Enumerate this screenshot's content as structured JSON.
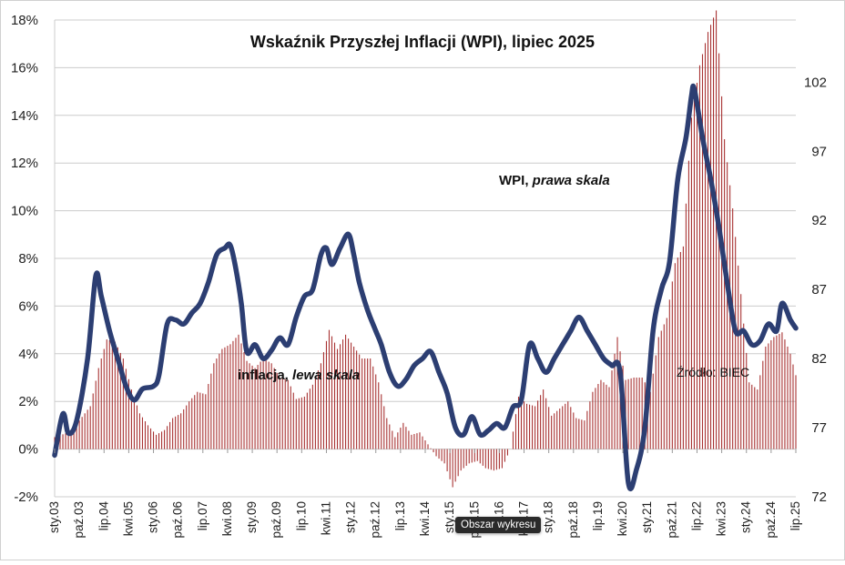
{
  "chart_data": {
    "type": "bar+line",
    "title": "Wskaźnik Przyszłej Inflacji (WPI), lipiec 2025",
    "annotations": {
      "wpi_label_prefix": "WPI, ",
      "wpi_label_italic": "prawa skala",
      "infl_label_prefix": "inflacja, ",
      "infl_label_italic": "lewa skala",
      "source": "Źródło: BIEC"
    },
    "left_axis": {
      "ylim": [
        -2,
        18
      ],
      "tick_labels": [
        "-2%",
        "0%",
        "2%",
        "4%",
        "6%",
        "8%",
        "10%",
        "12%",
        "14%",
        "16%",
        "18%"
      ]
    },
    "right_axis": {
      "ylim": [
        72,
        106.5
      ],
      "tick_labels": [
        "72",
        "77",
        "82",
        "87",
        "92",
        "97",
        "102"
      ]
    },
    "x_axis": {
      "range": [
        "2003-01",
        "2025-07"
      ],
      "tick_labels": [
        "sty.03",
        "paź.03",
        "lip.04",
        "kwi.05",
        "sty.06",
        "paź.06",
        "lip.07",
        "kwi.08",
        "sty.09",
        "paź.09",
        "lip.10",
        "kwi.11",
        "sty.12",
        "paź.12",
        "lip.13",
        "kwi.14",
        "sty.15",
        "paź.15",
        "lip.16",
        "kwi.17",
        "sty.18",
        "paź.18",
        "lip.19",
        "kwi.20",
        "sty.21",
        "paź.21",
        "lip.22",
        "kwi.23",
        "sty.24",
        "paź.24",
        "lip.25"
      ],
      "tick_dates": [
        "2003-01",
        "2003-10",
        "2004-07",
        "2005-04",
        "2006-01",
        "2006-10",
        "2007-07",
        "2008-04",
        "2009-01",
        "2009-10",
        "2010-07",
        "2011-04",
        "2012-01",
        "2012-10",
        "2013-07",
        "2014-04",
        "2015-01",
        "2015-10",
        "2016-07",
        "2017-04",
        "2018-01",
        "2018-10",
        "2019-07",
        "2020-04",
        "2021-01",
        "2021-10",
        "2022-07",
        "2023-04",
        "2024-01",
        "2024-10",
        "2025-07"
      ]
    },
    "grid": "horizontal",
    "series": [
      {
        "name": "inflacja",
        "type": "bar",
        "axis": "left",
        "color": "#a83232",
        "points": [
          [
            "2003-01",
            0.5
          ],
          [
            "2003-06",
            0.7
          ],
          [
            "2003-10",
            1.2
          ],
          [
            "2004-02",
            1.8
          ],
          [
            "2004-05",
            3.4
          ],
          [
            "2004-08",
            4.6
          ],
          [
            "2004-11",
            4.5
          ],
          [
            "2005-02",
            3.8
          ],
          [
            "2005-05",
            2.5
          ],
          [
            "2005-08",
            1.5
          ],
          [
            "2005-11",
            1.0
          ],
          [
            "2006-02",
            0.6
          ],
          [
            "2006-05",
            0.8
          ],
          [
            "2006-08",
            1.3
          ],
          [
            "2006-11",
            1.5
          ],
          [
            "2007-02",
            2.0
          ],
          [
            "2007-05",
            2.4
          ],
          [
            "2007-08",
            2.3
          ],
          [
            "2007-11",
            3.6
          ],
          [
            "2008-02",
            4.2
          ],
          [
            "2008-05",
            4.4
          ],
          [
            "2008-08",
            4.8
          ],
          [
            "2008-11",
            3.7
          ],
          [
            "2009-02",
            3.4
          ],
          [
            "2009-05",
            3.8
          ],
          [
            "2009-08",
            3.6
          ],
          [
            "2009-11",
            3.0
          ],
          [
            "2010-02",
            2.9
          ],
          [
            "2010-05",
            2.1
          ],
          [
            "2010-08",
            2.2
          ],
          [
            "2010-11",
            2.7
          ],
          [
            "2011-02",
            3.6
          ],
          [
            "2011-05",
            5.0
          ],
          [
            "2011-08",
            4.2
          ],
          [
            "2011-11",
            4.8
          ],
          [
            "2012-02",
            4.3
          ],
          [
            "2012-05",
            3.8
          ],
          [
            "2012-08",
            3.8
          ],
          [
            "2012-11",
            2.8
          ],
          [
            "2013-02",
            1.3
          ],
          [
            "2013-05",
            0.5
          ],
          [
            "2013-08",
            1.1
          ],
          [
            "2013-11",
            0.6
          ],
          [
            "2014-02",
            0.7
          ],
          [
            "2014-05",
            0.2
          ],
          [
            "2014-08",
            -0.3
          ],
          [
            "2014-11",
            -0.6
          ],
          [
            "2015-02",
            -1.6
          ],
          [
            "2015-05",
            -0.9
          ],
          [
            "2015-08",
            -0.6
          ],
          [
            "2015-11",
            -0.5
          ],
          [
            "2016-02",
            -0.8
          ],
          [
            "2016-05",
            -0.9
          ],
          [
            "2016-08",
            -0.8
          ],
          [
            "2016-11",
            0.0
          ],
          [
            "2017-02",
            2.2
          ],
          [
            "2017-05",
            1.9
          ],
          [
            "2017-08",
            1.8
          ],
          [
            "2017-11",
            2.5
          ],
          [
            "2018-02",
            1.4
          ],
          [
            "2018-05",
            1.7
          ],
          [
            "2018-08",
            2.0
          ],
          [
            "2018-11",
            1.3
          ],
          [
            "2019-02",
            1.2
          ],
          [
            "2019-05",
            2.4
          ],
          [
            "2019-08",
            2.9
          ],
          [
            "2019-11",
            2.6
          ],
          [
            "2020-02",
            4.7
          ],
          [
            "2020-05",
            2.9
          ],
          [
            "2020-08",
            3.0
          ],
          [
            "2020-11",
            3.0
          ],
          [
            "2021-02",
            2.4
          ],
          [
            "2021-05",
            4.7
          ],
          [
            "2021-08",
            5.5
          ],
          [
            "2021-11",
            7.8
          ],
          [
            "2022-02",
            8.5
          ],
          [
            "2022-05",
            13.9
          ],
          [
            "2022-08",
            16.1
          ],
          [
            "2022-11",
            17.5
          ],
          [
            "2023-02",
            18.4
          ],
          [
            "2023-05",
            13.0
          ],
          [
            "2023-08",
            10.1
          ],
          [
            "2023-11",
            6.5
          ],
          [
            "2024-02",
            2.8
          ],
          [
            "2024-05",
            2.5
          ],
          [
            "2024-08",
            4.3
          ],
          [
            "2024-11",
            4.7
          ],
          [
            "2025-02",
            4.9
          ],
          [
            "2025-05",
            4.0
          ],
          [
            "2025-07",
            3.1
          ]
        ]
      },
      {
        "name": "WPI",
        "type": "line",
        "axis": "right",
        "color": "#2c3e72",
        "points": [
          [
            "2003-01",
            75.0
          ],
          [
            "2003-04",
            78.0
          ],
          [
            "2003-06",
            76.6
          ],
          [
            "2003-09",
            77.5
          ],
          [
            "2004-01",
            82.0
          ],
          [
            "2004-04",
            88.0
          ],
          [
            "2004-06",
            86.5
          ],
          [
            "2004-09",
            84.0
          ],
          [
            "2004-12",
            82.0
          ],
          [
            "2005-03",
            80.0
          ],
          [
            "2005-06",
            79.0
          ],
          [
            "2005-09",
            79.8
          ],
          [
            "2006-01",
            80.0
          ],
          [
            "2006-03",
            80.8
          ],
          [
            "2006-06",
            84.5
          ],
          [
            "2006-09",
            84.8
          ],
          [
            "2006-12",
            84.5
          ],
          [
            "2007-03",
            85.3
          ],
          [
            "2007-06",
            86.0
          ],
          [
            "2007-09",
            87.5
          ],
          [
            "2007-12",
            89.5
          ],
          [
            "2008-03",
            90.0
          ],
          [
            "2008-05",
            90.2
          ],
          [
            "2008-07",
            88.5
          ],
          [
            "2008-09",
            86.0
          ],
          [
            "2008-11",
            82.5
          ],
          [
            "2009-02",
            83.0
          ],
          [
            "2009-05",
            82.0
          ],
          [
            "2009-08",
            82.6
          ],
          [
            "2009-11",
            83.5
          ],
          [
            "2010-02",
            83.0
          ],
          [
            "2010-05",
            85.0
          ],
          [
            "2010-08",
            86.5
          ],
          [
            "2010-11",
            87.0
          ],
          [
            "2011-02",
            89.5
          ],
          [
            "2011-04",
            90.0
          ],
          [
            "2011-06",
            88.8
          ],
          [
            "2011-09",
            90.0
          ],
          [
            "2011-12",
            91.0
          ],
          [
            "2012-02",
            89.5
          ],
          [
            "2012-04",
            87.5
          ],
          [
            "2012-07",
            85.5
          ],
          [
            "2012-10",
            84.0
          ],
          [
            "2012-12",
            83.0
          ],
          [
            "2013-03",
            81.0
          ],
          [
            "2013-06",
            80.0
          ],
          [
            "2013-09",
            80.5
          ],
          [
            "2013-12",
            81.5
          ],
          [
            "2014-03",
            82.0
          ],
          [
            "2014-06",
            82.5
          ],
          [
            "2014-09",
            81.0
          ],
          [
            "2014-12",
            79.5
          ],
          [
            "2015-03",
            77.0
          ],
          [
            "2015-06",
            76.5
          ],
          [
            "2015-09",
            77.8
          ],
          [
            "2015-12",
            76.5
          ],
          [
            "2016-03",
            76.8
          ],
          [
            "2016-06",
            77.3
          ],
          [
            "2016-09",
            77.0
          ],
          [
            "2016-12",
            78.5
          ],
          [
            "2017-03",
            79.0
          ],
          [
            "2017-06",
            83.0
          ],
          [
            "2017-09",
            82.0
          ],
          [
            "2017-12",
            81.0
          ],
          [
            "2018-03",
            82.0
          ],
          [
            "2018-06",
            83.0
          ],
          [
            "2018-09",
            84.0
          ],
          [
            "2018-12",
            85.0
          ],
          [
            "2019-03",
            84.0
          ],
          [
            "2019-06",
            83.0
          ],
          [
            "2019-09",
            82.0
          ],
          [
            "2019-12",
            81.5
          ],
          [
            "2020-03",
            81.0
          ],
          [
            "2020-06",
            73.0
          ],
          [
            "2020-09",
            74.0
          ],
          [
            "2020-12",
            77.0
          ],
          [
            "2021-03",
            84.0
          ],
          [
            "2021-06",
            87.0
          ],
          [
            "2021-09",
            89.0
          ],
          [
            "2021-12",
            95.0
          ],
          [
            "2022-03",
            98.0
          ],
          [
            "2022-05",
            101.0
          ],
          [
            "2022-06",
            101.5
          ],
          [
            "2022-09",
            98.0
          ],
          [
            "2022-12",
            95.0
          ],
          [
            "2023-03",
            91.5
          ],
          [
            "2023-06",
            87.5
          ],
          [
            "2023-09",
            84.0
          ],
          [
            "2023-12",
            84.0
          ],
          [
            "2024-03",
            83.0
          ],
          [
            "2024-06",
            83.3
          ],
          [
            "2024-09",
            84.5
          ],
          [
            "2024-12",
            84.0
          ],
          [
            "2025-02",
            86.0
          ],
          [
            "2025-05",
            84.8
          ],
          [
            "2025-07",
            84.2
          ]
        ]
      }
    ]
  },
  "ui": {
    "tooltip_text": "Obszar wykresu"
  }
}
